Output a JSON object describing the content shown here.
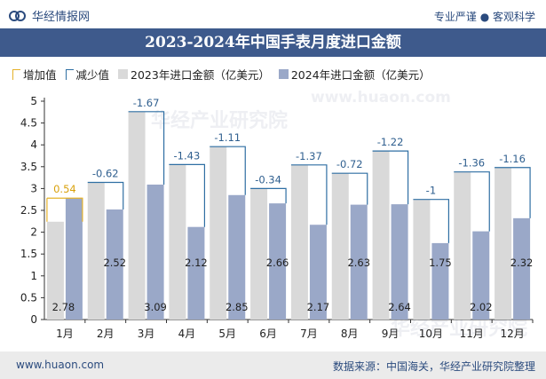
{
  "brand": {
    "name": "华经情报网",
    "tagline": "专业严谨 ● 客观科学"
  },
  "chart_title": "2023-2024年中国手表月度进口金额",
  "legend": {
    "increase": "增加值",
    "decrease": "减少值",
    "series_2023": "2023年进口金额（亿美元）",
    "series_2024": "2024年进口金额（亿美元）"
  },
  "footer": {
    "url": "www.huaon.com",
    "source": "数据来源：中国海关，华经产业研究院整理"
  },
  "watermark": {
    "line1": "华经产业研究院",
    "line2": "www.huaon.com"
  },
  "colors": {
    "bar_2023": "#d9d9d9",
    "bar_2024": "#9aa8c8",
    "increase": "#e5b22a",
    "decrease": "#2f6fa3",
    "title_bg": "#3e5a8c"
  },
  "chart_data": {
    "type": "bar",
    "categories": [
      "1月",
      "2月",
      "3月",
      "4月",
      "5月",
      "6月",
      "7月",
      "8月",
      "9月",
      "10月",
      "11月",
      "12月"
    ],
    "series": [
      {
        "name": "2023年进口金额（亿美元）",
        "values": [
          2.24,
          3.14,
          4.76,
          3.55,
          3.96,
          3.0,
          3.54,
          3.35,
          3.86,
          2.75,
          3.38,
          3.48
        ]
      },
      {
        "name": "2024年进口金额（亿美元）",
        "values": [
          2.78,
          2.52,
          3.09,
          2.12,
          2.85,
          2.66,
          2.17,
          2.63,
          2.64,
          1.75,
          2.02,
          2.32
        ]
      }
    ],
    "changes": [
      0.54,
      -0.62,
      -1.67,
      -1.43,
      -1.11,
      -0.34,
      -1.37,
      -0.72,
      -1.22,
      -1,
      -1.36,
      -1.16
    ],
    "change_labels": [
      "0.54",
      "-0.62",
      "-1.67",
      "-1.43",
      "-1.11",
      "-0.34",
      "-1.37",
      "-0.72",
      "-1.22",
      "-1",
      "-1.36",
      "-1.16"
    ],
    "value_labels_2024": [
      "2.78",
      "2.52",
      "3.09",
      "2.12",
      "2.85",
      "2.66",
      "2.17",
      "2.63",
      "2.64",
      "1.75",
      "2.02",
      "2.32"
    ],
    "ylim": [
      0,
      5
    ],
    "yticks": [
      "0",
      "0.5",
      "1",
      "1.5",
      "2",
      "2.5",
      "3",
      "3.5",
      "4",
      "4.5",
      "5"
    ],
    "grid": false,
    "legend_position": "top"
  }
}
